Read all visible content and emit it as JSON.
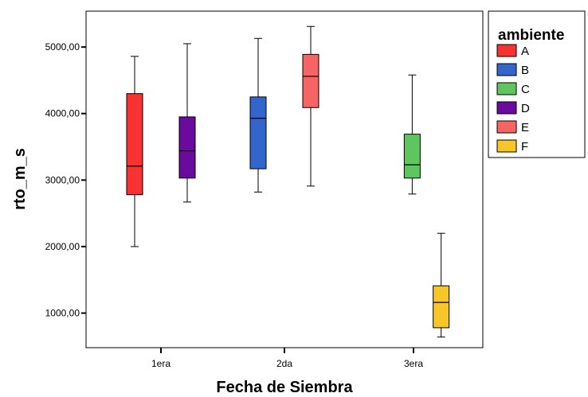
{
  "chart_data": {
    "type": "box",
    "xlabel": "Fecha de Siembra",
    "ylabel": "rto_m_s",
    "categories": [
      "1era",
      "2da",
      "3era"
    ],
    "y_ticks": [
      {
        "value": 1000,
        "label": "1000,00"
      },
      {
        "value": 2000,
        "label": "2000,00"
      },
      {
        "value": 3000,
        "label": "3000,00"
      },
      {
        "value": 4000,
        "label": "4000,00"
      },
      {
        "value": 5000,
        "label": "5000,00"
      }
    ],
    "ylim": [
      480,
      5540
    ],
    "legend": {
      "title": "ambiente",
      "placement": "right",
      "items": [
        {
          "label": "A",
          "color": "#f73232"
        },
        {
          "label": "B",
          "color": "#3366cc"
        },
        {
          "label": "C",
          "color": "#5fc65f"
        },
        {
          "label": "D",
          "color": "#6b0a9e"
        },
        {
          "label": "E",
          "color": "#f76464"
        },
        {
          "label": "F",
          "color": "#f7c628"
        }
      ]
    },
    "series": [
      {
        "name": "A",
        "category": "1era",
        "offset": -1,
        "color": "#f73232",
        "min": 2000,
        "q1": 2780,
        "median": 3210,
        "q3": 4300,
        "max": 4860
      },
      {
        "name": "D",
        "category": "1era",
        "offset": 1,
        "color": "#6b0a9e",
        "min": 2670,
        "q1": 3030,
        "median": 3440,
        "q3": 3950,
        "max": 5050
      },
      {
        "name": "B",
        "category": "2da",
        "offset": -1,
        "color": "#3366cc",
        "min": 2820,
        "q1": 3170,
        "median": 3930,
        "q3": 4250,
        "max": 5130
      },
      {
        "name": "E",
        "category": "2da",
        "offset": 1,
        "color": "#f76464",
        "min": 2910,
        "q1": 4090,
        "median": 4560,
        "q3": 4890,
        "max": 5310
      },
      {
        "name": "C",
        "category": "3era",
        "offset": -0.05,
        "color": "#5fc65f",
        "min": 2790,
        "q1": 3030,
        "median": 3230,
        "q3": 3690,
        "max": 4580
      },
      {
        "name": "F",
        "category": "3era",
        "offset": 1.05,
        "color": "#f7c628",
        "min": 640,
        "q1": 780,
        "median": 1160,
        "q3": 1410,
        "max": 2200
      }
    ]
  }
}
